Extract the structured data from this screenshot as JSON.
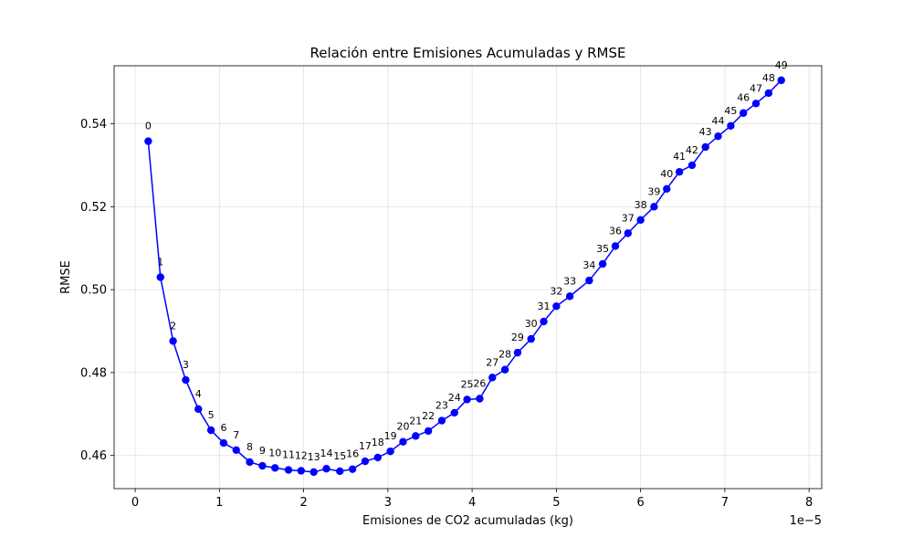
{
  "chart_data": {
    "type": "line",
    "title": "Relación entre Emisiones Acumuladas y RMSE",
    "xlabel": "Emisiones de CO2 acumuladas (kg)",
    "ylabel": "RMSE",
    "x_offset_label": "1e−5",
    "xlim": [
      -0.25,
      8.15
    ],
    "ylim": [
      0.452,
      0.554
    ],
    "x_ticks": [
      0,
      1,
      2,
      3,
      4,
      5,
      6,
      7,
      8
    ],
    "y_ticks": [
      0.46,
      0.48,
      0.5,
      0.52,
      0.54
    ],
    "grid": true,
    "series_color": "#0000ff",
    "points": [
      {
        "label": "0",
        "x": 0.155,
        "y": 0.5358
      },
      {
        "label": "1",
        "x": 0.3,
        "y": 0.503
      },
      {
        "label": "2",
        "x": 0.45,
        "y": 0.4876
      },
      {
        "label": "3",
        "x": 0.6,
        "y": 0.4782
      },
      {
        "label": "4",
        "x": 0.75,
        "y": 0.4712
      },
      {
        "label": "5",
        "x": 0.9,
        "y": 0.4661
      },
      {
        "label": "6",
        "x": 1.05,
        "y": 0.463
      },
      {
        "label": "7",
        "x": 1.2,
        "y": 0.4613
      },
      {
        "label": "8",
        "x": 1.36,
        "y": 0.4584
      },
      {
        "label": "9",
        "x": 1.51,
        "y": 0.4575
      },
      {
        "label": "10",
        "x": 1.66,
        "y": 0.457
      },
      {
        "label": "11",
        "x": 1.82,
        "y": 0.4565
      },
      {
        "label": "12",
        "x": 1.97,
        "y": 0.4563
      },
      {
        "label": "13",
        "x": 2.12,
        "y": 0.456
      },
      {
        "label": "14",
        "x": 2.27,
        "y": 0.4568
      },
      {
        "label": "15",
        "x": 2.43,
        "y": 0.4562
      },
      {
        "label": "16",
        "x": 2.58,
        "y": 0.4567
      },
      {
        "label": "17",
        "x": 2.73,
        "y": 0.4586
      },
      {
        "label": "18",
        "x": 2.88,
        "y": 0.4595
      },
      {
        "label": "19",
        "x": 3.03,
        "y": 0.461
      },
      {
        "label": "20",
        "x": 3.18,
        "y": 0.4633
      },
      {
        "label": "21",
        "x": 3.33,
        "y": 0.4647
      },
      {
        "label": "22",
        "x": 3.48,
        "y": 0.4659
      },
      {
        "label": "23",
        "x": 3.64,
        "y": 0.4684
      },
      {
        "label": "24",
        "x": 3.79,
        "y": 0.4703
      },
      {
        "label": "25",
        "x": 3.94,
        "y": 0.4735
      },
      {
        "label": "26",
        "x": 4.09,
        "y": 0.4737
      },
      {
        "label": "27",
        "x": 4.24,
        "y": 0.4788
      },
      {
        "label": "28",
        "x": 4.39,
        "y": 0.4807
      },
      {
        "label": "29",
        "x": 4.54,
        "y": 0.4848
      },
      {
        "label": "30",
        "x": 4.7,
        "y": 0.4881
      },
      {
        "label": "31",
        "x": 4.85,
        "y": 0.4923
      },
      {
        "label": "32",
        "x": 5.0,
        "y": 0.496
      },
      {
        "label": "33",
        "x": 5.16,
        "y": 0.4984
      },
      {
        "label": "34",
        "x": 5.39,
        "y": 0.5022
      },
      {
        "label": "35",
        "x": 5.55,
        "y": 0.5062
      },
      {
        "label": "36",
        "x": 5.7,
        "y": 0.5105
      },
      {
        "label": "37",
        "x": 5.85,
        "y": 0.5136
      },
      {
        "label": "38",
        "x": 6.0,
        "y": 0.5168
      },
      {
        "label": "39",
        "x": 6.16,
        "y": 0.52
      },
      {
        "label": "40",
        "x": 6.31,
        "y": 0.5243
      },
      {
        "label": "41",
        "x": 6.46,
        "y": 0.5284
      },
      {
        "label": "42",
        "x": 6.61,
        "y": 0.53
      },
      {
        "label": "43",
        "x": 6.77,
        "y": 0.5344
      },
      {
        "label": "44",
        "x": 6.92,
        "y": 0.537
      },
      {
        "label": "45",
        "x": 7.07,
        "y": 0.5395
      },
      {
        "label": "46",
        "x": 7.22,
        "y": 0.5426
      },
      {
        "label": "47",
        "x": 7.37,
        "y": 0.5449
      },
      {
        "label": "48",
        "x": 7.52,
        "y": 0.5474
      },
      {
        "label": "49",
        "x": 7.67,
        "y": 0.5505
      }
    ]
  }
}
